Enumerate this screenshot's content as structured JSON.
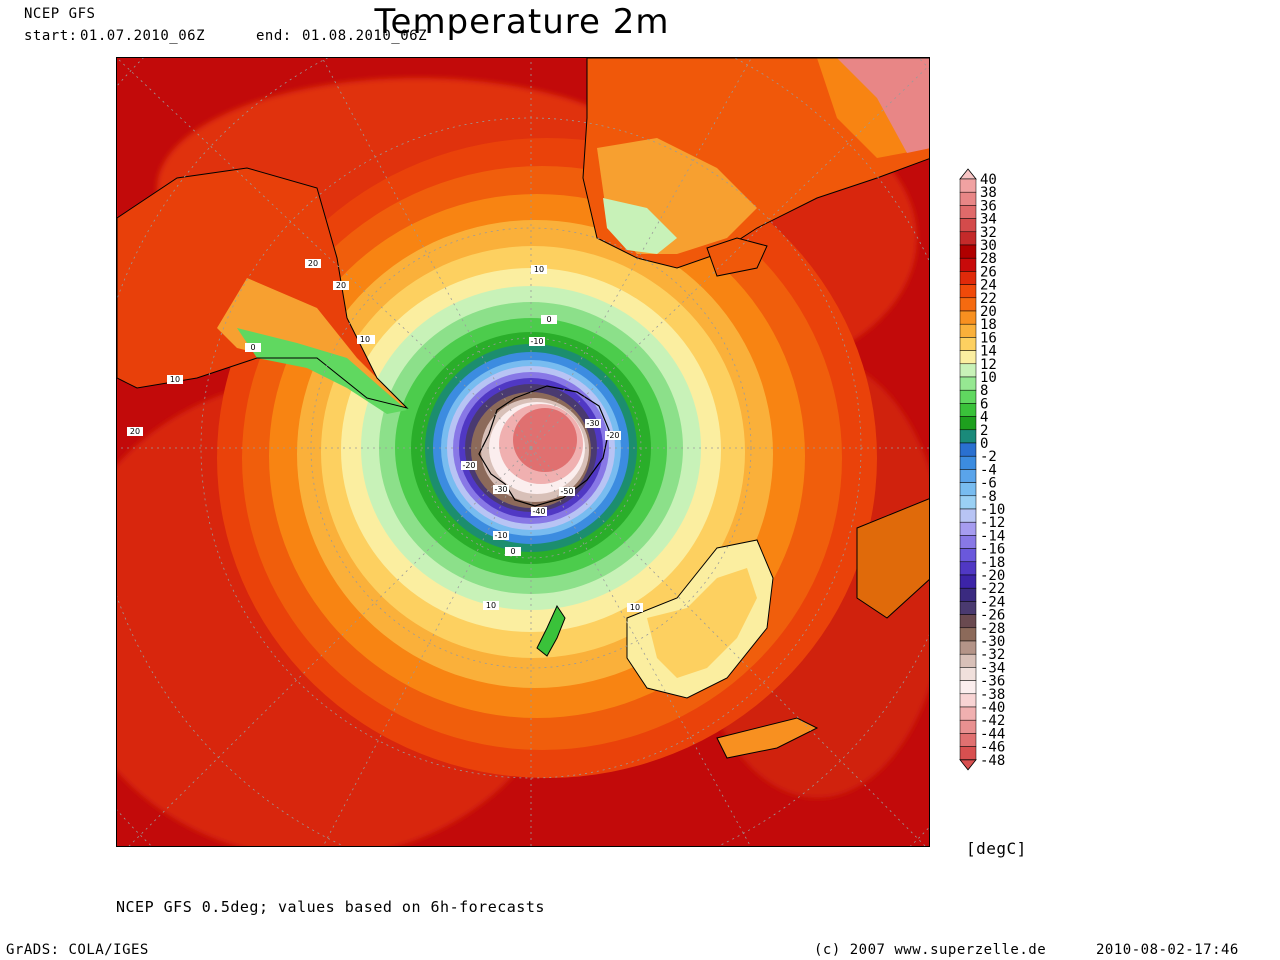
{
  "header": {
    "model": "NCEP GFS",
    "start_label": "start:",
    "start_value": "01.07.2010_06Z",
    "end_label": "end:",
    "end_value": "01.08.2010_06Z",
    "title": "Temperature 2m"
  },
  "legend": {
    "unit": "[degC]",
    "levels": [
      "40",
      "38",
      "36",
      "34",
      "32",
      "30",
      "28",
      "26",
      "24",
      "22",
      "20",
      "18",
      "16",
      "14",
      "12",
      "10",
      "8",
      "6",
      "4",
      "2",
      "0",
      "-2",
      "-4",
      "-6",
      "-8",
      "-10",
      "-12",
      "-14",
      "-16",
      "-18",
      "-20",
      "-22",
      "-24",
      "-26",
      "-28",
      "-30",
      "-32",
      "-34",
      "-36",
      "-38",
      "-40",
      "-42",
      "-44",
      "-46",
      "-48"
    ],
    "colors": [
      "#f7c4c4",
      "#f0a2a2",
      "#e88686",
      "#e06a6a",
      "#d44b4b",
      "#c42a2a",
      "#b00000",
      "#c80a0a",
      "#e02a0a",
      "#f04a0a",
      "#f56a10",
      "#f89020",
      "#fab03a",
      "#fdd060",
      "#fbeea0",
      "#c8f2b8",
      "#96e892",
      "#60d860",
      "#3ac23a",
      "#1ea01e",
      "#1a8a7a",
      "#2a70d0",
      "#3c8ce0",
      "#5aa4ea",
      "#78bcf0",
      "#9ad0f4",
      "#b8c4f4",
      "#a69cf0",
      "#8878e6",
      "#6a58dc",
      "#5038c4",
      "#3c24a8",
      "#3a2a80",
      "#4a3a70",
      "#6a4a50",
      "#8c6a5a",
      "#b49488",
      "#d8c0b8",
      "#f0e0dc",
      "#fbeeee",
      "#f8d4d4",
      "#f0b0b0",
      "#e89090",
      "#e07070",
      "#d85050"
    ]
  },
  "map": {
    "contour_labels": [
      "20",
      "20",
      "0",
      "10",
      "10",
      "20",
      "10",
      "0",
      "-10",
      "10",
      "-30",
      "-20",
      "-20",
      "-30",
      "-50",
      "-40",
      "-10",
      "0",
      "10",
      "10"
    ]
  },
  "footer": {
    "description": "NCEP GFS 0.5deg; values based on 6h-forecasts",
    "software": "GrADS: COLA/IGES",
    "copyright": "(c) 2007 www.superzelle.de",
    "timestamp": "2010-08-02-17:46"
  }
}
